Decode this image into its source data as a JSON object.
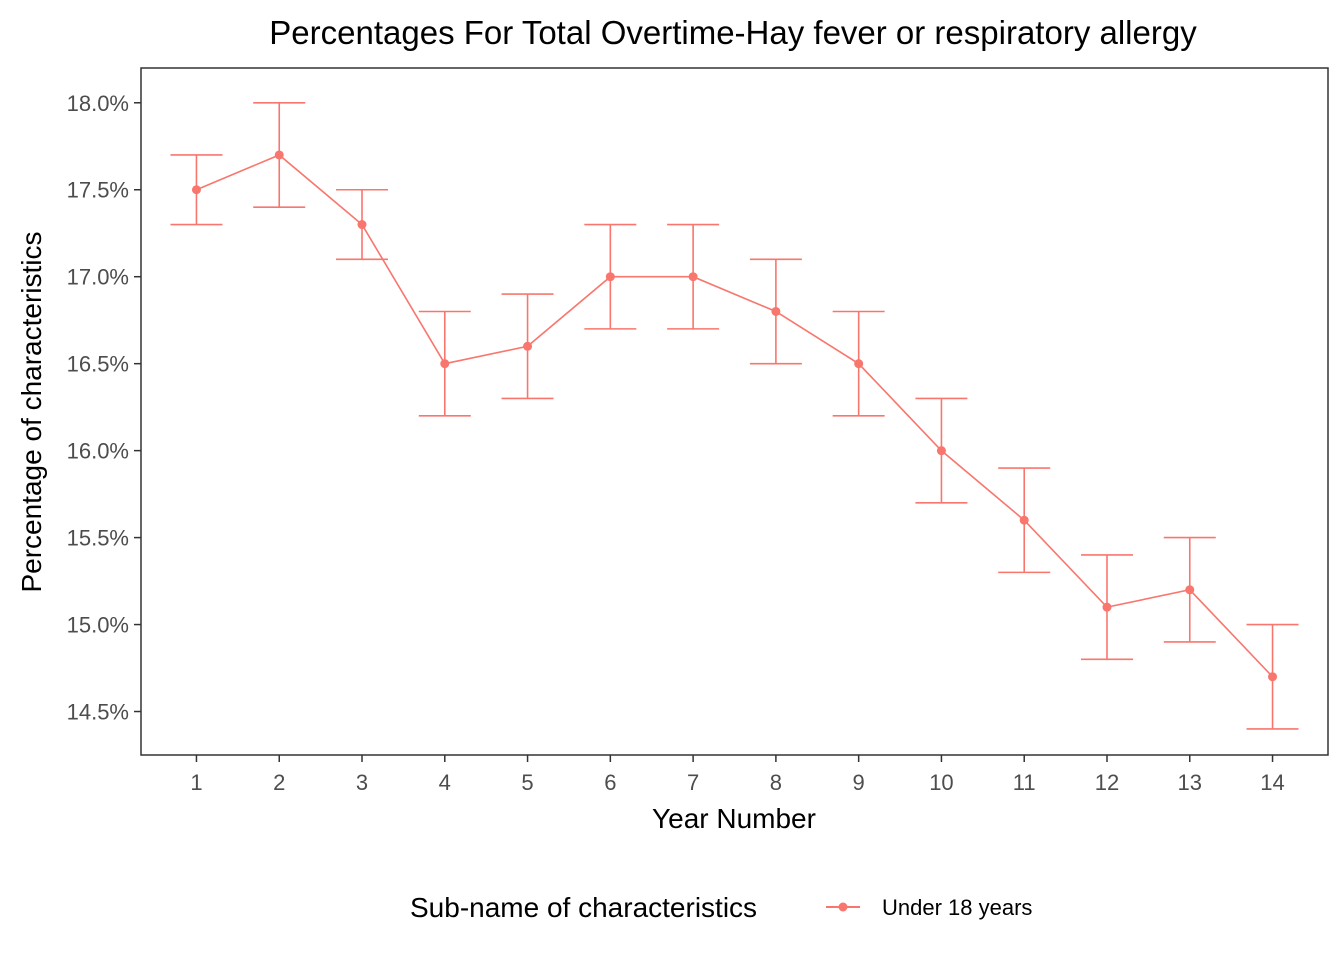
{
  "chart_data": {
    "type": "line",
    "title": "Percentages For Total Overtime-Hay fever or respiratory allergy",
    "xlabel": "Year Number",
    "ylabel": "Percentage of characteristics",
    "x": [
      1,
      2,
      3,
      4,
      5,
      6,
      7,
      8,
      9,
      10,
      11,
      12,
      13,
      14
    ],
    "x_tick_labels": [
      "1",
      "2",
      "3",
      "4",
      "5",
      "6",
      "7",
      "8",
      "9",
      "10",
      "11",
      "12",
      "13",
      "14"
    ],
    "y_tick_values": [
      14.5,
      15.0,
      15.5,
      16.0,
      16.5,
      17.0,
      17.5,
      18.0
    ],
    "y_tick_labels": [
      "14.5%",
      "15.0%",
      "15.5%",
      "16.0%",
      "16.5%",
      "17.0%",
      "17.5%",
      "18.0%"
    ],
    "xlim": [
      0.33,
      14.67
    ],
    "ylim": [
      14.25,
      18.2
    ],
    "grid": false,
    "legend": {
      "title": "Sub-name of characteristics",
      "position": "bottom"
    },
    "series": [
      {
        "name": "Under 18 years",
        "color": "#F8766D",
        "values": [
          17.5,
          17.7,
          17.3,
          16.5,
          16.6,
          17.0,
          17.0,
          16.8,
          16.5,
          16.0,
          15.6,
          15.1,
          15.2,
          14.7
        ],
        "error_lower": [
          17.3,
          17.4,
          17.1,
          16.2,
          16.3,
          16.7,
          16.7,
          16.5,
          16.2,
          15.7,
          15.3,
          14.8,
          14.9,
          14.4
        ],
        "error_upper": [
          17.7,
          18.0,
          17.5,
          16.8,
          16.9,
          17.3,
          17.3,
          17.1,
          16.8,
          16.3,
          15.9,
          15.4,
          15.5,
          15.0
        ]
      }
    ]
  }
}
